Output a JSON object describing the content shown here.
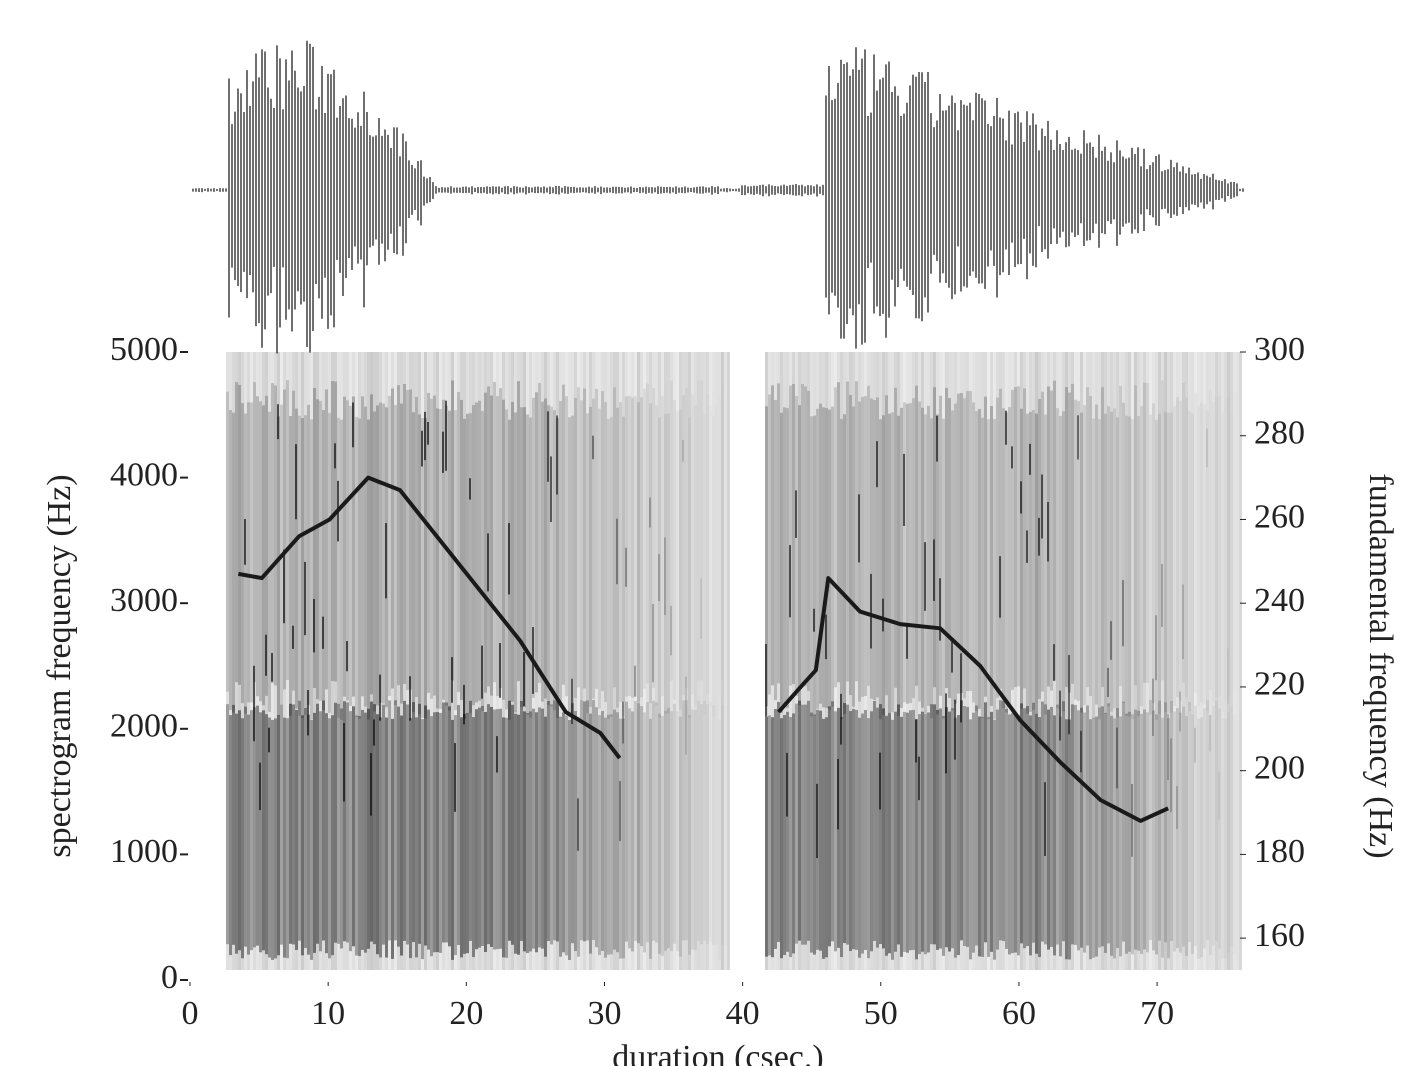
{
  "chart_data": {
    "type": "line",
    "y_label": "spectrogram frequency (Hz)",
    "y2_label": "fundamental frequency (Hz)",
    "x_label": "duration (csec.)",
    "x": [
      3.5,
      5.2,
      7.9,
      10.1,
      12.9,
      15.2,
      18.1,
      21,
      23.9,
      27.2,
      29.7,
      31.1,
      37,
      42.6,
      44.2,
      45.3,
      46.2,
      48.5,
      51.4,
      54.3,
      57.2,
      60.1,
      63,
      65.9,
      68.8,
      70.8
    ],
    "series": [
      {
        "color": "#1a1a1a",
        "axis": "y2",
        "values": [
          247,
          246,
          256,
          260,
          270,
          267,
          255,
          243,
          231,
          214,
          209,
          203,
          null,
          214,
          220,
          224,
          246,
          238,
          235,
          234,
          225,
          212,
          202,
          193,
          188,
          191
        ]
      }
    ],
    "xlim": [
      0,
      76
    ],
    "xticks": [
      0,
      10,
      20,
      30,
      40,
      50,
      60,
      70
    ],
    "ylim": [
      0,
      5000
    ],
    "yticks": [
      0,
      1000,
      2000,
      3000,
      4000,
      5000
    ],
    "y2lim": [
      150,
      300
    ],
    "y2ticks": [
      160,
      180,
      200,
      220,
      240,
      260,
      280,
      300
    ]
  }
}
